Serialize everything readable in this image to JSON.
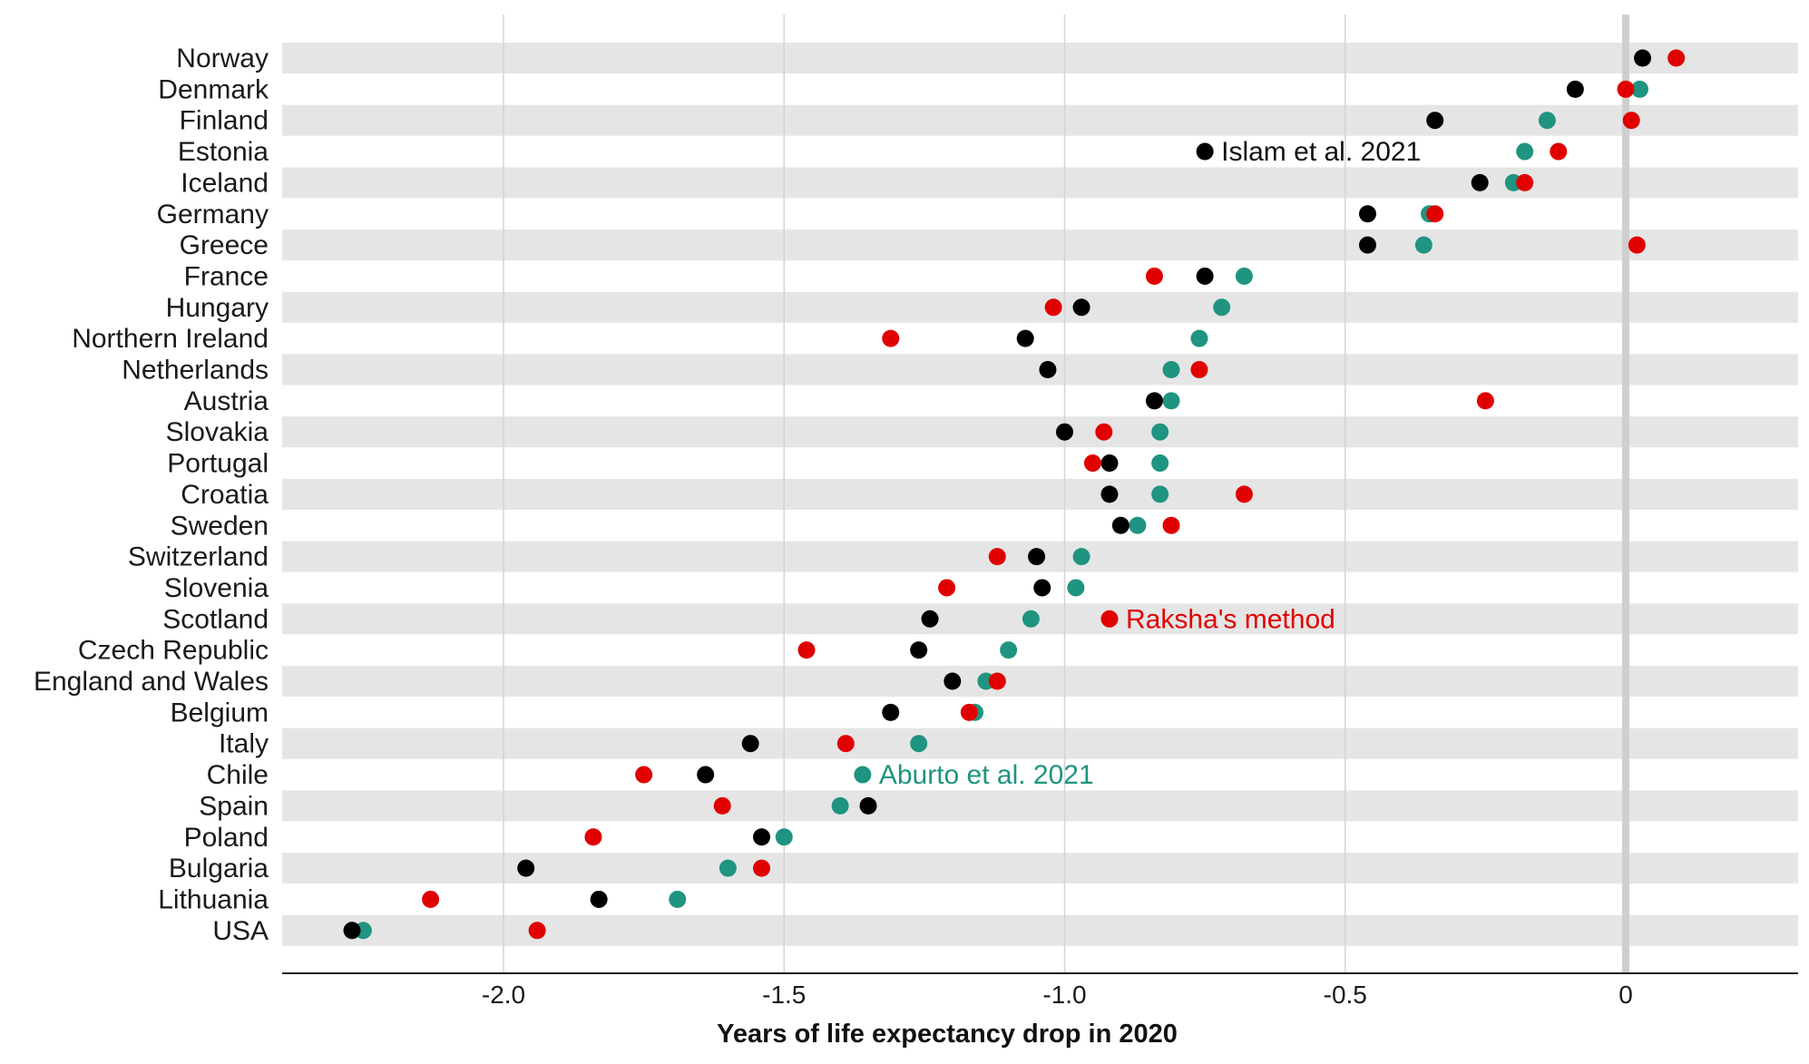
{
  "chart_data": {
    "type": "scatter",
    "title": "",
    "xlabel": "Years of life expectancy drop in 2020",
    "ylabel": "",
    "xlim": [
      -2.35,
      0.3
    ],
    "x_ticks": [
      {
        "value": -2.0,
        "label": "-2.0"
      },
      {
        "value": -1.5,
        "label": "-1.5"
      },
      {
        "value": -1.0,
        "label": "-1.0"
      },
      {
        "value": -0.5,
        "label": "-0.5"
      },
      {
        "value": 0,
        "label": "0"
      }
    ],
    "grid": "vertical",
    "categories": [
      "Norway",
      "Denmark",
      "Finland",
      "Estonia",
      "Iceland",
      "Germany",
      "Greece",
      "France",
      "Hungary",
      "Northern Ireland",
      "Netherlands",
      "Austria",
      "Slovakia",
      "Portugal",
      "Croatia",
      "Sweden",
      "Switzerland",
      "Slovenia",
      "Scotland",
      "Czech Republic",
      "England and Wales",
      "Belgium",
      "Italy",
      "Chile",
      "Spain",
      "Poland",
      "Bulgaria",
      "Lithuania",
      "USA"
    ],
    "series": [
      {
        "name": "Islam et al. 2021",
        "color": "#000000",
        "values": [
          0.03,
          -0.09,
          -0.34,
          -0.75,
          -0.26,
          -0.46,
          -0.46,
          -0.75,
          -0.97,
          -1.07,
          -1.03,
          -0.84,
          -1.0,
          -0.92,
          -0.92,
          -0.9,
          -1.05,
          -1.04,
          -1.24,
          -1.26,
          -1.2,
          -1.31,
          -1.56,
          -1.64,
          -1.35,
          -1.54,
          -1.96,
          -1.83,
          -2.27
        ]
      },
      {
        "name": "Aburto et al. 2021",
        "color": "#1f9480",
        "values": [
          null,
          0.025,
          -0.14,
          -0.18,
          -0.2,
          -0.35,
          -0.36,
          -0.68,
          -0.72,
          -0.76,
          -0.81,
          -0.81,
          -0.83,
          -0.83,
          -0.83,
          -0.87,
          -0.97,
          -0.98,
          -1.06,
          -1.1,
          -1.14,
          -1.16,
          -1.26,
          -1.36,
          -1.4,
          -1.5,
          -1.6,
          -1.69,
          -2.25
        ]
      },
      {
        "name": "Raksha's method",
        "color": "#e00000",
        "values": [
          0.09,
          0.0,
          0.01,
          -0.12,
          -0.18,
          -0.34,
          0.02,
          -0.84,
          -1.02,
          -1.31,
          -0.76,
          -0.25,
          -0.93,
          -0.95,
          -0.68,
          -0.81,
          -1.12,
          -1.21,
          -0.92,
          -1.46,
          -1.12,
          -1.17,
          -1.39,
          -1.75,
          -1.61,
          -1.84,
          -1.54,
          -2.13,
          -1.94
        ]
      }
    ],
    "annotations": [
      {
        "series": 0,
        "row": 3,
        "text": "Islam et al. 2021"
      },
      {
        "series": 2,
        "row": 18,
        "text": "Raksha's method"
      },
      {
        "series": 1,
        "row": 23,
        "text": "Aburto et al. 2021"
      }
    ]
  }
}
